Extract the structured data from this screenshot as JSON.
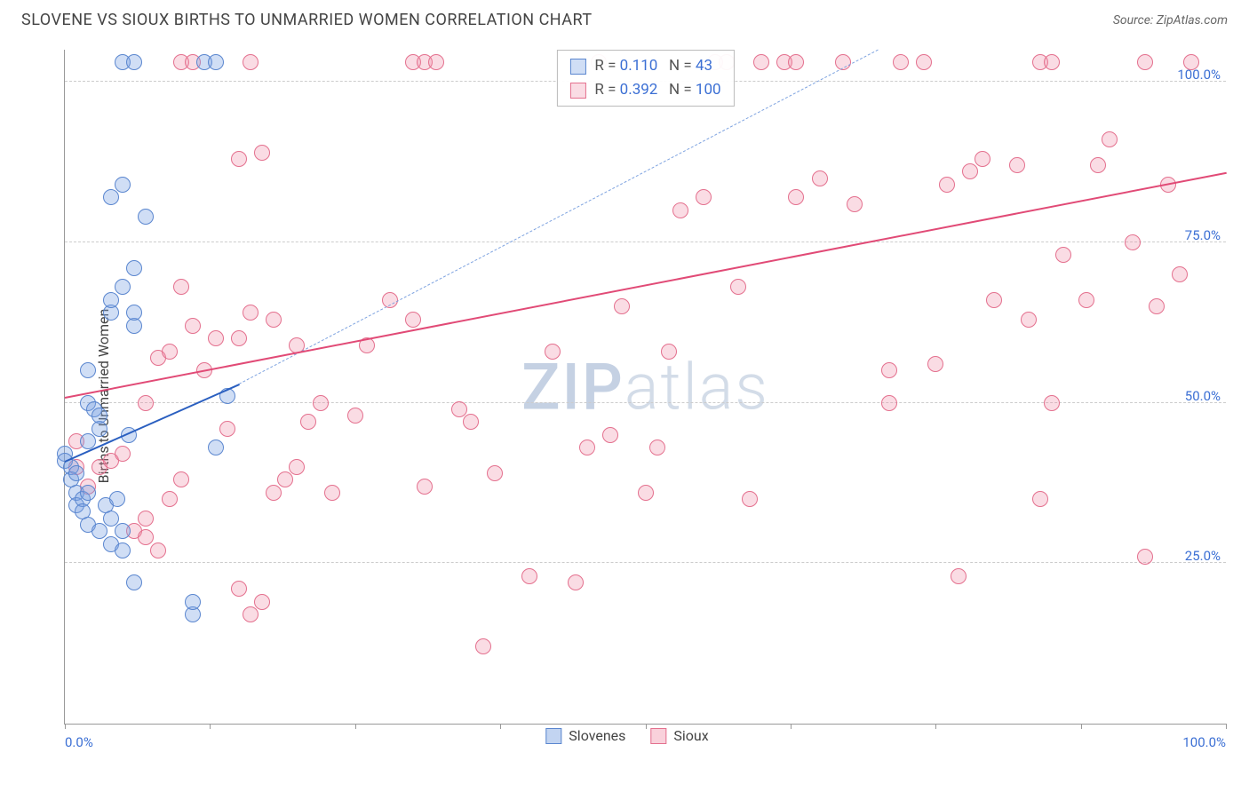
{
  "title": "SLOVENE VS SIOUX BIRTHS TO UNMARRIED WOMEN CORRELATION CHART",
  "source": "Source: ZipAtlas.com",
  "ylabel": "Births to Unmarried Women",
  "watermark_a": "ZIP",
  "watermark_b": "atlas",
  "chart": {
    "type": "scatter",
    "xlim": [
      0,
      100
    ],
    "ylim": [
      0,
      105
    ],
    "yticks": [
      25,
      50,
      75,
      100
    ],
    "ytick_labels": [
      "25.0%",
      "50.0%",
      "75.0%",
      "100.0%"
    ],
    "xticks": [
      0,
      12.5,
      25,
      37.5,
      50,
      62.5,
      75,
      87.5,
      100
    ],
    "xtick_labels_shown": {
      "0": "0.0%",
      "100": "100.0%"
    },
    "grid_color": "#cccccc",
    "axis_color": "#999999",
    "tick_label_color": "#3b6fd4",
    "background_color": "#ffffff",
    "marker_radius": 9,
    "marker_stroke_width": 1.2,
    "series": [
      {
        "name": "Slovenes",
        "fill": "rgba(120,160,225,0.35)",
        "stroke": "#5a86cf",
        "r_value": "0.110",
        "n_value": "43",
        "regression": {
          "x1": 0,
          "y1": 41,
          "x2": 15,
          "y2": 53,
          "color": "#2a5fc0",
          "width": 2.2
        },
        "regression_extrapolated": {
          "x1": 15,
          "y1": 53,
          "x2": 70,
          "y2": 105,
          "color": "#7ea3e0",
          "width": 1.5
        },
        "points": [
          [
            0,
            42
          ],
          [
            0,
            41
          ],
          [
            0.5,
            40
          ],
          [
            0.5,
            38
          ],
          [
            1,
            39
          ],
          [
            1,
            36
          ],
          [
            1,
            34
          ],
          [
            1.5,
            35
          ],
          [
            1.5,
            33
          ],
          [
            2,
            31
          ],
          [
            2,
            36
          ],
          [
            2,
            50
          ],
          [
            2.5,
            49
          ],
          [
            2,
            44
          ],
          [
            3,
            30
          ],
          [
            2,
            55
          ],
          [
            3,
            46
          ],
          [
            3,
            48
          ],
          [
            3.5,
            34
          ],
          [
            4,
            28
          ],
          [
            4,
            32
          ],
          [
            4.5,
            35
          ],
          [
            5,
            30
          ],
          [
            5,
            27
          ],
          [
            6,
            22
          ],
          [
            5.5,
            45
          ],
          [
            6,
            62
          ],
          [
            4,
            64
          ],
          [
            4,
            66
          ],
          [
            5,
            68
          ],
          [
            6,
            71
          ],
          [
            6,
            64
          ],
          [
            7,
            79
          ],
          [
            4,
            82
          ],
          [
            5,
            84
          ],
          [
            11,
            17
          ],
          [
            11,
            19
          ],
          [
            13,
            43
          ],
          [
            14,
            51
          ],
          [
            5,
            103
          ],
          [
            6,
            103
          ],
          [
            12,
            103
          ],
          [
            13,
            103
          ]
        ]
      },
      {
        "name": "Sioux",
        "fill": "rgba(240,140,165,0.30)",
        "stroke": "#e4708e",
        "r_value": "0.392",
        "n_value": "100",
        "regression": {
          "x1": 0,
          "y1": 51,
          "x2": 100,
          "y2": 86,
          "color": "#e14a76",
          "width": 2.2
        },
        "points": [
          [
            1,
            40
          ],
          [
            1,
            44
          ],
          [
            2,
            37
          ],
          [
            3,
            40
          ],
          [
            4,
            41
          ],
          [
            5,
            42
          ],
          [
            6,
            30
          ],
          [
            7,
            29
          ],
          [
            7,
            32
          ],
          [
            8,
            27
          ],
          [
            9,
            35
          ],
          [
            10,
            38
          ],
          [
            7,
            50
          ],
          [
            8,
            57
          ],
          [
            9,
            58
          ],
          [
            10,
            68
          ],
          [
            11,
            62
          ],
          [
            12,
            55
          ],
          [
            13,
            60
          ],
          [
            14,
            46
          ],
          [
            15,
            21
          ],
          [
            16,
            17
          ],
          [
            17,
            19
          ],
          [
            18,
            36
          ],
          [
            19,
            38
          ],
          [
            20,
            40
          ],
          [
            15,
            60
          ],
          [
            16,
            64
          ],
          [
            18,
            63
          ],
          [
            20,
            59
          ],
          [
            15,
            88
          ],
          [
            17,
            89
          ],
          [
            16,
            103
          ],
          [
            10,
            103
          ],
          [
            11,
            103
          ],
          [
            21,
            47
          ],
          [
            22,
            50
          ],
          [
            23,
            36
          ],
          [
            25,
            48
          ],
          [
            26,
            59
          ],
          [
            28,
            66
          ],
          [
            30,
            63
          ],
          [
            31,
            37
          ],
          [
            30,
            103
          ],
          [
            31,
            103
          ],
          [
            32,
            103
          ],
          [
            34,
            49
          ],
          [
            35,
            47
          ],
          [
            36,
            12
          ],
          [
            37,
            39
          ],
          [
            40,
            23
          ],
          [
            42,
            58
          ],
          [
            44,
            22
          ],
          [
            45,
            43
          ],
          [
            46,
            103
          ],
          [
            47,
            45
          ],
          [
            48,
            65
          ],
          [
            50,
            36
          ],
          [
            51,
            43
          ],
          [
            52,
            58
          ],
          [
            53,
            80
          ],
          [
            55,
            82
          ],
          [
            56,
            103
          ],
          [
            57,
            103
          ],
          [
            58,
            68
          ],
          [
            59,
            35
          ],
          [
            60,
            103
          ],
          [
            62,
            103
          ],
          [
            63,
            103
          ],
          [
            67,
            103
          ],
          [
            63,
            82
          ],
          [
            65,
            85
          ],
          [
            68,
            81
          ],
          [
            71,
            55
          ],
          [
            71,
            50
          ],
          [
            72,
            103
          ],
          [
            74,
            103
          ],
          [
            75,
            56
          ],
          [
            76,
            84
          ],
          [
            77,
            23
          ],
          [
            78,
            86
          ],
          [
            79,
            88
          ],
          [
            80,
            66
          ],
          [
            82,
            87
          ],
          [
            83,
            63
          ],
          [
            84,
            35
          ],
          [
            84,
            103
          ],
          [
            85,
            103
          ],
          [
            86,
            73
          ],
          [
            88,
            66
          ],
          [
            89,
            87
          ],
          [
            90,
            91
          ],
          [
            92,
            75
          ],
          [
            93,
            103
          ],
          [
            94,
            65
          ],
          [
            95,
            84
          ],
          [
            96,
            70
          ],
          [
            97,
            103
          ],
          [
            93,
            26
          ],
          [
            85,
            50
          ]
        ]
      }
    ],
    "legend_top": {
      "r_label": "R =",
      "n_label": "N =",
      "value_color": "#3b6fd4",
      "label_color": "#555"
    },
    "legend_bottom": [
      {
        "label": "Slovenes",
        "fill": "rgba(120,160,225,0.45)",
        "stroke": "#5a86cf"
      },
      {
        "label": "Sioux",
        "fill": "rgba(240,140,165,0.40)",
        "stroke": "#e4708e"
      }
    ]
  }
}
